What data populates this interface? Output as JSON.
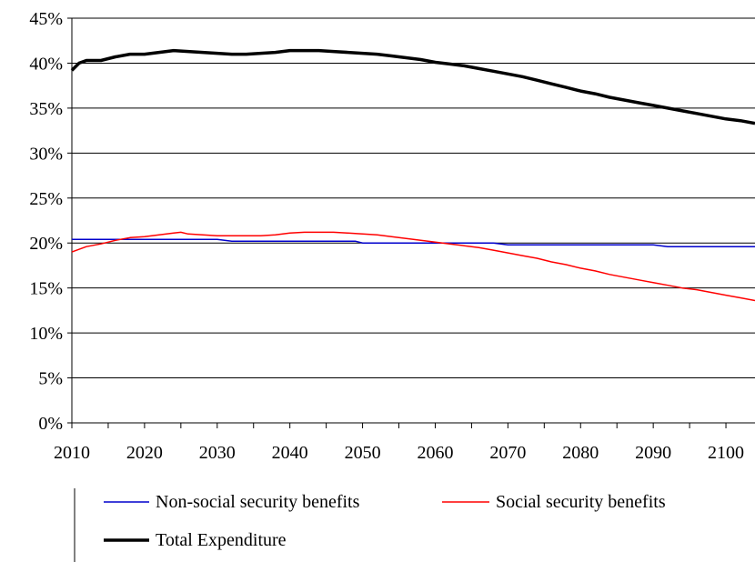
{
  "chart_data": {
    "type": "line",
    "title": "",
    "xlabel": "",
    "ylabel": "",
    "xlim": [
      2010,
      2104
    ],
    "ylim": [
      0,
      45
    ],
    "x_ticks": [
      2010,
      2020,
      2030,
      2040,
      2050,
      2060,
      2070,
      2080,
      2090,
      2100
    ],
    "y_ticks": [
      0,
      5,
      10,
      15,
      20,
      25,
      30,
      35,
      40,
      45
    ],
    "y_tick_labels": [
      "0%",
      "5%",
      "10%",
      "15%",
      "20%",
      "25%",
      "30%",
      "35%",
      "40%",
      "45%"
    ],
    "x_tick_labels": [
      "2010",
      "2020",
      "2030",
      "2040",
      "2050",
      "2060",
      "2070",
      "2080",
      "2090",
      "2100"
    ],
    "grid": "horizontal",
    "legend_position": "bottom",
    "series": [
      {
        "name": "Non-social security benefits",
        "color": "#0000cc",
        "width": 1.5,
        "x": [
          2010,
          2020,
          2030,
          2032,
          2040,
          2049,
          2050,
          2060,
          2068,
          2070,
          2080,
          2090,
          2092,
          2100,
          2104
        ],
        "values": [
          20.4,
          20.4,
          20.4,
          20.2,
          20.2,
          20.2,
          20.0,
          20.0,
          20.0,
          19.8,
          19.8,
          19.8,
          19.6,
          19.6,
          19.6
        ]
      },
      {
        "name": "Social security benefits",
        "color": "#ff0000",
        "width": 1.5,
        "x": [
          2010,
          2012,
          2014,
          2016,
          2018,
          2020,
          2022,
          2024,
          2025,
          2026,
          2028,
          2030,
          2032,
          2034,
          2036,
          2038,
          2040,
          2042,
          2044,
          2046,
          2048,
          2050,
          2052,
          2054,
          2056,
          2058,
          2060,
          2062,
          2064,
          2066,
          2068,
          2070,
          2072,
          2074,
          2076,
          2078,
          2080,
          2082,
          2084,
          2086,
          2088,
          2090,
          2092,
          2094,
          2096,
          2098,
          2100,
          2102,
          2104
        ],
        "values": [
          19.0,
          19.6,
          19.9,
          20.3,
          20.6,
          20.7,
          20.9,
          21.1,
          21.2,
          21.0,
          20.9,
          20.8,
          20.8,
          20.8,
          20.8,
          20.9,
          21.1,
          21.2,
          21.2,
          21.2,
          21.1,
          21.0,
          20.9,
          20.7,
          20.5,
          20.3,
          20.1,
          19.9,
          19.7,
          19.5,
          19.2,
          18.9,
          18.6,
          18.3,
          17.9,
          17.6,
          17.2,
          16.9,
          16.5,
          16.2,
          15.9,
          15.6,
          15.3,
          15.0,
          14.8,
          14.5,
          14.2,
          13.9,
          13.6
        ]
      },
      {
        "name": "Total Expenditure",
        "color": "#000000",
        "width": 3.5,
        "x": [
          2010,
          2011,
          2012,
          2014,
          2016,
          2018,
          2020,
          2022,
          2024,
          2026,
          2028,
          2030,
          2032,
          2034,
          2036,
          2038,
          2040,
          2042,
          2044,
          2046,
          2048,
          2050,
          2052,
          2054,
          2056,
          2058,
          2060,
          2062,
          2064,
          2066,
          2068,
          2070,
          2072,
          2074,
          2076,
          2078,
          2080,
          2082,
          2084,
          2086,
          2088,
          2090,
          2092,
          2094,
          2096,
          2098,
          2100,
          2102,
          2104
        ],
        "values": [
          39.2,
          40.0,
          40.3,
          40.3,
          40.7,
          41.0,
          41.0,
          41.2,
          41.4,
          41.3,
          41.2,
          41.1,
          41.0,
          41.0,
          41.1,
          41.2,
          41.4,
          41.4,
          41.4,
          41.3,
          41.2,
          41.1,
          41.0,
          40.8,
          40.6,
          40.4,
          40.1,
          39.9,
          39.7,
          39.4,
          39.1,
          38.8,
          38.5,
          38.1,
          37.7,
          37.3,
          36.9,
          36.6,
          36.2,
          35.9,
          35.6,
          35.3,
          35.0,
          34.7,
          34.4,
          34.1,
          33.8,
          33.6,
          33.3
        ]
      }
    ]
  }
}
